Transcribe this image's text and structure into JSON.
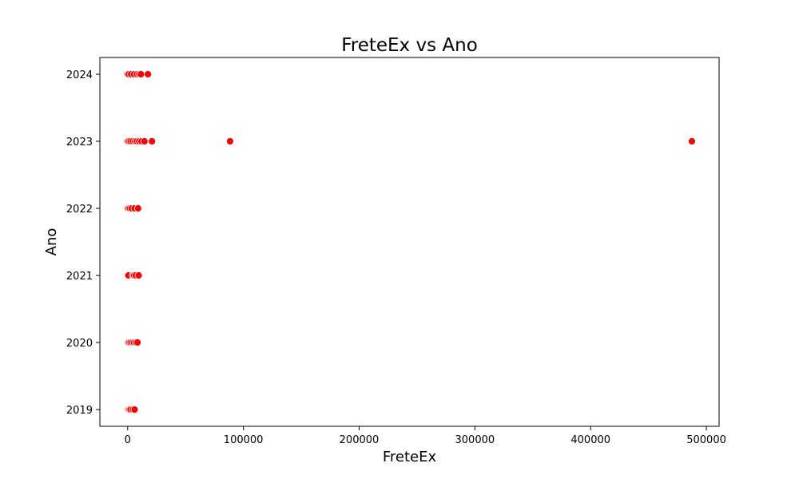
{
  "chart_data": {
    "type": "scatter",
    "title": "FreteEx vs Ano",
    "xlabel": "FreteEx",
    "ylabel": "Ano",
    "xlim": [
      -24000,
      511000
    ],
    "ylim": [
      2018.75,
      2024.25
    ],
    "xticks": [
      0,
      100000,
      200000,
      300000,
      400000,
      500000
    ],
    "yticks": [
      2019,
      2020,
      2021,
      2022,
      2023,
      2024
    ],
    "grid": false,
    "legend": "none",
    "marker_color": "#ff0000",
    "marker_edge": "#ffffff",
    "series": [
      {
        "points": [
          {
            "x": 0,
            "y": 2019
          },
          {
            "x": 700,
            "y": 2019
          },
          {
            "x": 1500,
            "y": 2019
          },
          {
            "x": 2500,
            "y": 2019
          },
          {
            "x": 4500,
            "y": 2019
          },
          {
            "x": 6000,
            "y": 2019
          },
          {
            "x": 0,
            "y": 2020
          },
          {
            "x": 500,
            "y": 2020
          },
          {
            "x": 1200,
            "y": 2020
          },
          {
            "x": 2500,
            "y": 2020
          },
          {
            "x": 4000,
            "y": 2020
          },
          {
            "x": 5500,
            "y": 2020
          },
          {
            "x": 7000,
            "y": 2020
          },
          {
            "x": 8500,
            "y": 2020
          },
          {
            "x": 0,
            "y": 2021
          },
          {
            "x": 700,
            "y": 2021
          },
          {
            "x": 4500,
            "y": 2021
          },
          {
            "x": 5500,
            "y": 2021
          },
          {
            "x": 7000,
            "y": 2021
          },
          {
            "x": 9500,
            "y": 2021
          },
          {
            "x": 0,
            "y": 2022
          },
          {
            "x": 800,
            "y": 2022
          },
          {
            "x": 2000,
            "y": 2022
          },
          {
            "x": 3500,
            "y": 2022
          },
          {
            "x": 6000,
            "y": 2022
          },
          {
            "x": 9000,
            "y": 2022
          },
          {
            "x": 0,
            "y": 2023
          },
          {
            "x": 1000,
            "y": 2023
          },
          {
            "x": 2500,
            "y": 2023
          },
          {
            "x": 4500,
            "y": 2023
          },
          {
            "x": 6500,
            "y": 2023
          },
          {
            "x": 8000,
            "y": 2023
          },
          {
            "x": 10000,
            "y": 2023
          },
          {
            "x": 12000,
            "y": 2023
          },
          {
            "x": 14500,
            "y": 2023
          },
          {
            "x": 21000,
            "y": 2023
          },
          {
            "x": 88500,
            "y": 2023
          },
          {
            "x": 487500,
            "y": 2023
          },
          {
            "x": 0,
            "y": 2024
          },
          {
            "x": 1000,
            "y": 2024
          },
          {
            "x": 3000,
            "y": 2024
          },
          {
            "x": 5500,
            "y": 2024
          },
          {
            "x": 8000,
            "y": 2024
          },
          {
            "x": 10000,
            "y": 2024
          },
          {
            "x": 11500,
            "y": 2024
          },
          {
            "x": 17500,
            "y": 2024
          }
        ]
      }
    ]
  }
}
